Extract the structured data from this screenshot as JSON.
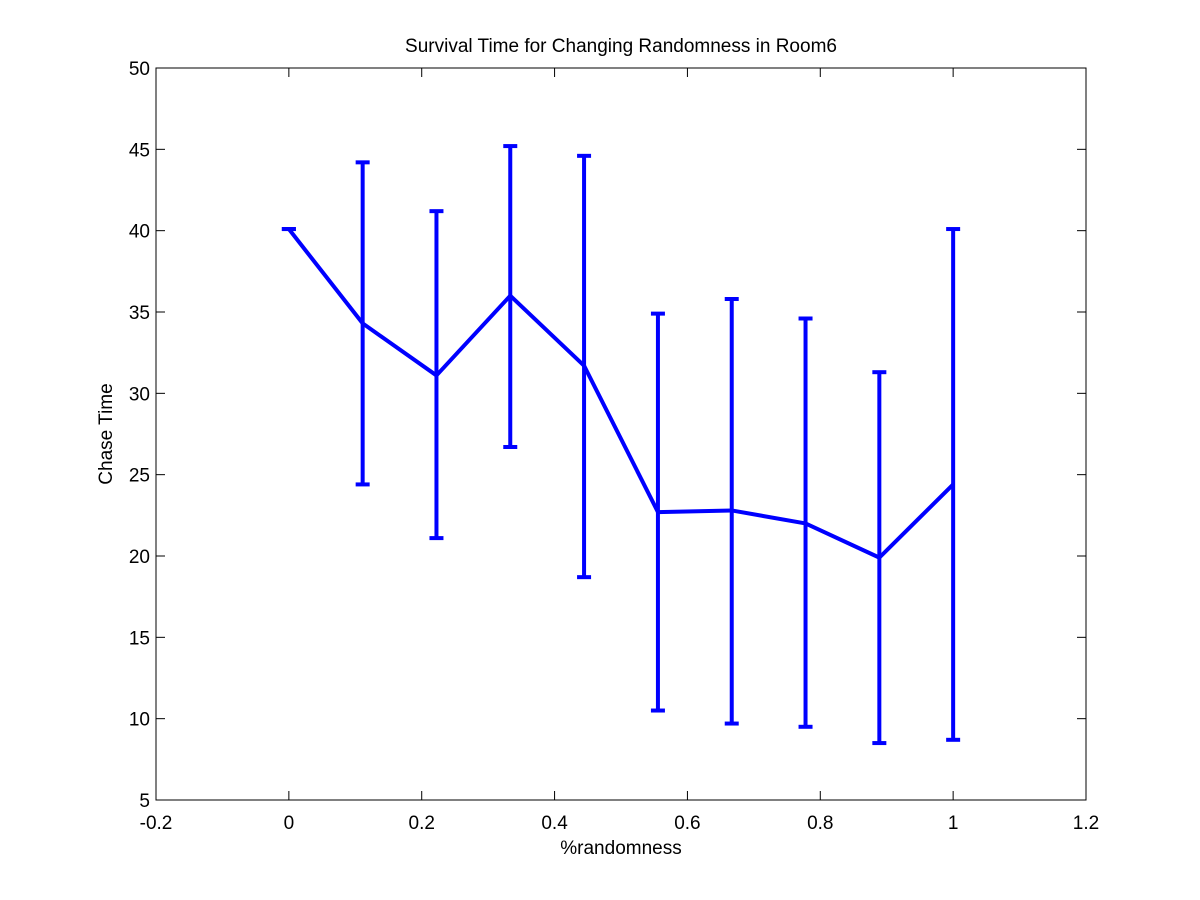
{
  "chart_data": {
    "type": "line",
    "title": "Survival Time for Changing Randomness in Room6",
    "xlabel": "%randomness",
    "ylabel": "Chase Time",
    "xlim": [
      -0.2,
      1.2
    ],
    "ylim": [
      5,
      50
    ],
    "xticks": [
      -0.2,
      0,
      0.2,
      0.4,
      0.6,
      0.8,
      1,
      1.2
    ],
    "xtick_labels": [
      "-0.2",
      "0",
      "0.2",
      "0.4",
      "0.6",
      "0.8",
      "1",
      "1.2"
    ],
    "yticks": [
      5,
      10,
      15,
      20,
      25,
      30,
      35,
      40,
      45,
      50
    ],
    "ytick_labels": [
      "5",
      "10",
      "15",
      "20",
      "25",
      "30",
      "35",
      "40",
      "45",
      "50"
    ],
    "grid": false,
    "line_color": "#0000ff",
    "series": [
      {
        "x": [
          0,
          0.1111,
          0.2222,
          0.3333,
          0.4444,
          0.5556,
          0.6667,
          0.7778,
          0.8889,
          1
        ],
        "y": [
          40.1,
          34.3,
          31.1,
          36.0,
          31.7,
          22.7,
          22.8,
          22.0,
          19.9,
          24.4
        ],
        "error_lower": [
          40.1,
          24.4,
          21.1,
          26.7,
          18.7,
          10.5,
          9.7,
          9.5,
          8.5,
          8.7
        ],
        "error_upper": [
          40.1,
          44.2,
          41.2,
          45.2,
          44.6,
          34.9,
          35.8,
          34.6,
          31.3,
          40.1
        ]
      }
    ]
  }
}
